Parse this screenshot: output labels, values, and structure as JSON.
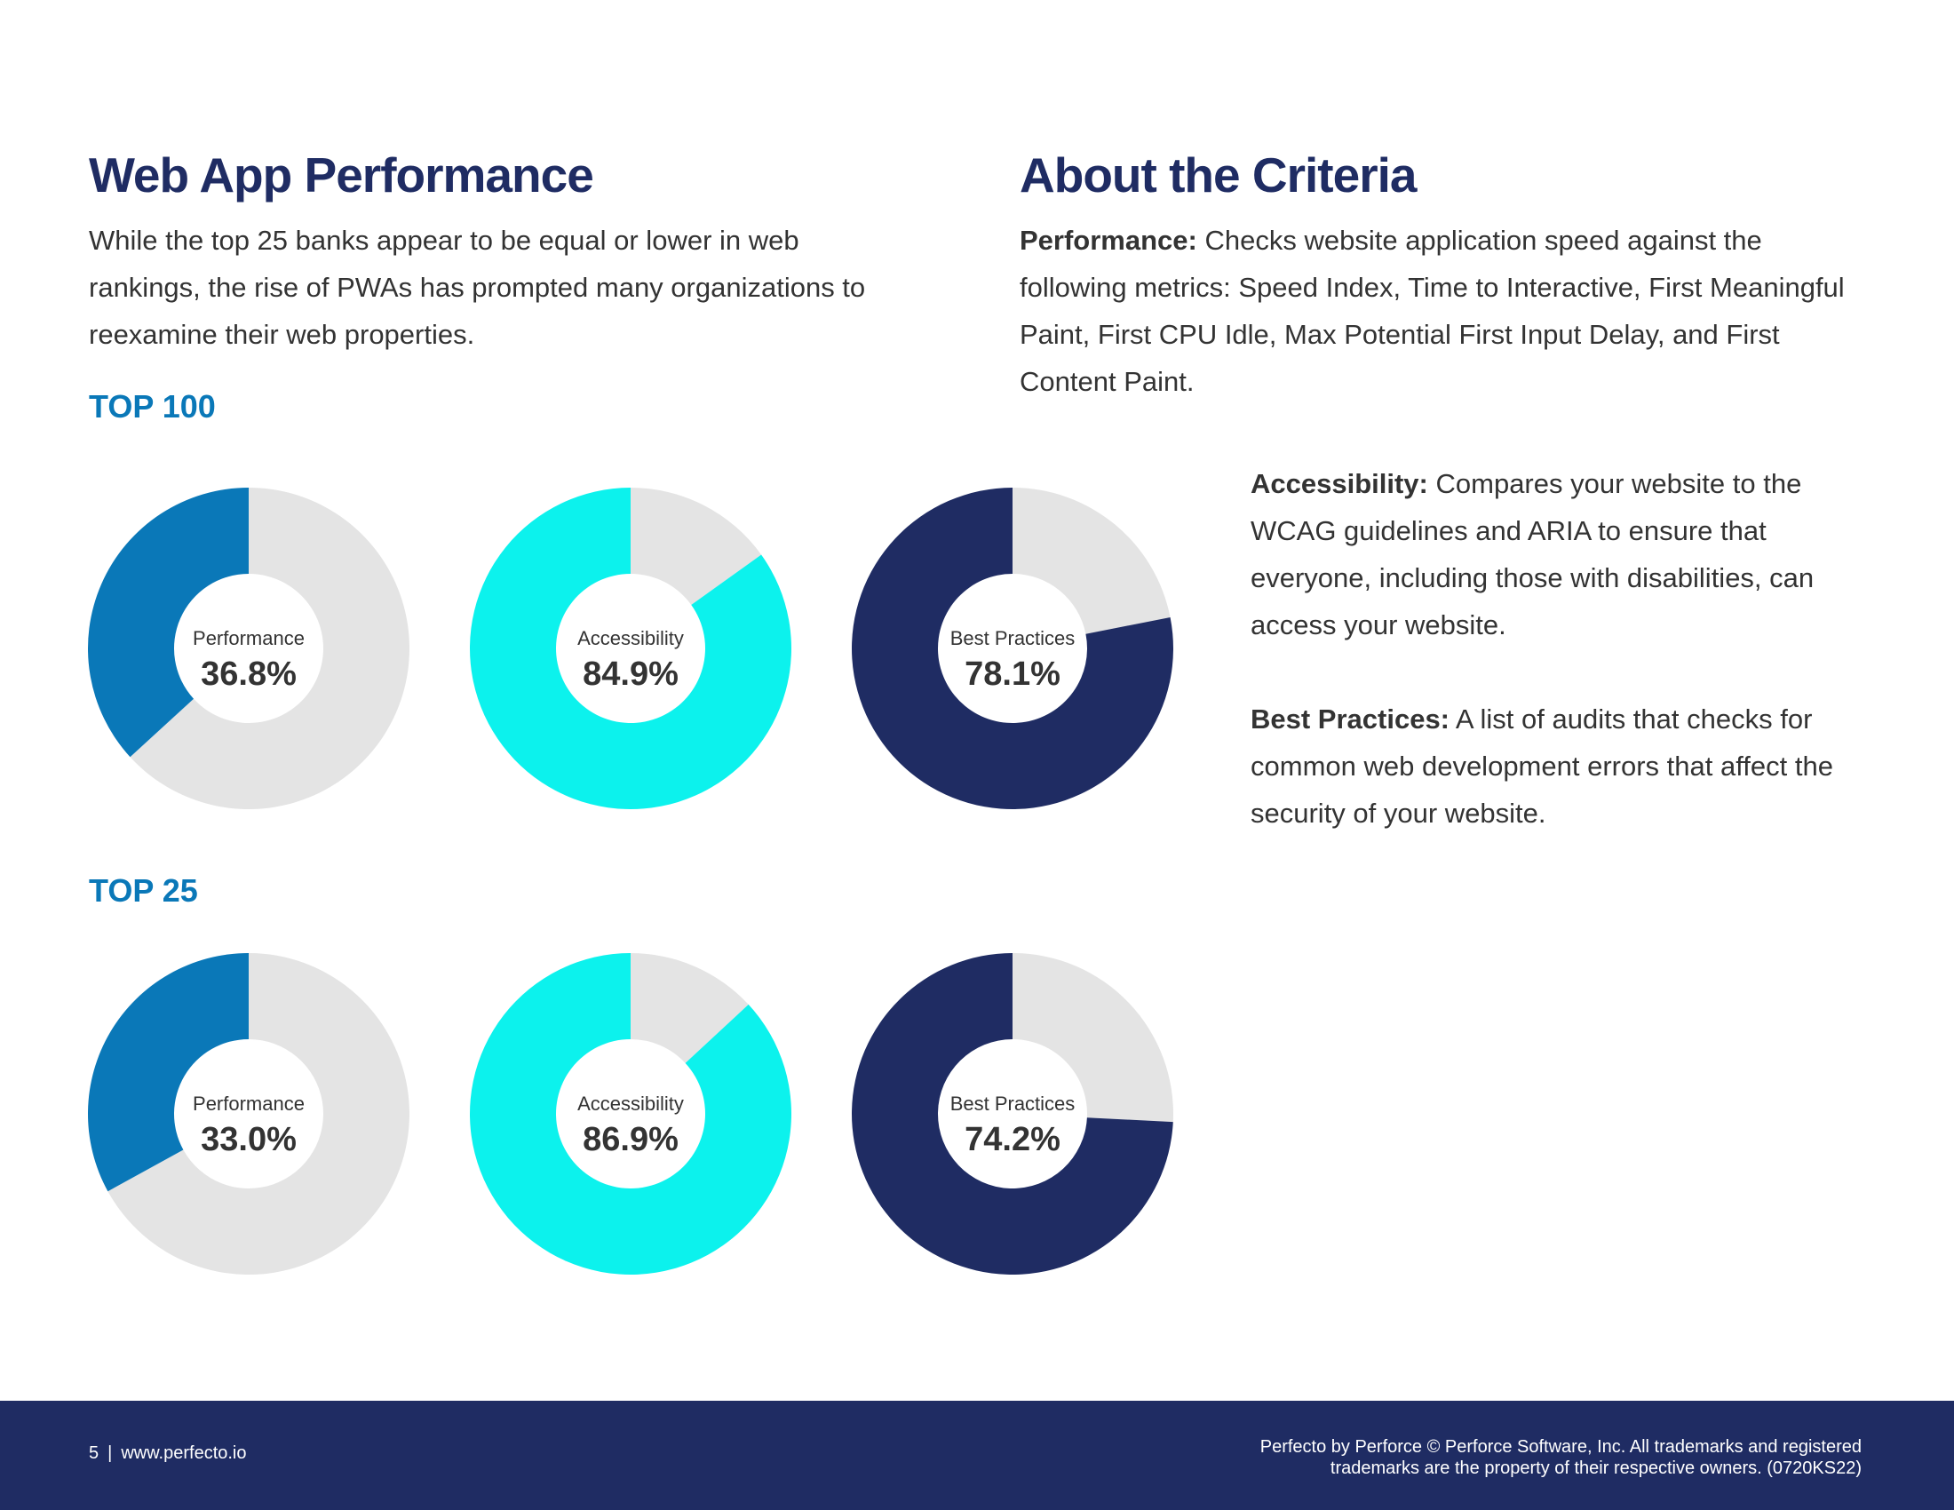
{
  "left": {
    "title": "Web App Performance",
    "intro": "While the top 25 banks appear to be equal or lower in web rankings, the rise of PWAs has prompted many organizations to reexamine their web properties."
  },
  "right": {
    "title": "About the Criteria",
    "performance": {
      "term": "Performance:",
      "text": "Checks website application speed against the following metrics: Speed Index, Time to Interactive, First Meaningful Paint, First CPU Idle, Max Potential First Input Delay, and First Content Paint."
    },
    "accessibility": {
      "term": "Accessibility:",
      "text": "Compares your website to the WCAG guidelines and ARIA to ensure that everyone, including those with disabilities, can access your website."
    },
    "best_practices": {
      "term": "Best Practices:",
      "text": "A list of audits that checks for common web development errors that affect the security of your website."
    }
  },
  "colors": {
    "remainder": "#e4e4e4",
    "performance": "#0a78b8",
    "accessibility": "#0cf2ed",
    "best_practices": "#1f2c63"
  },
  "chart_data": [
    {
      "type": "pie",
      "group": "TOP 100",
      "charts": [
        {
          "label": "Performance",
          "value": 36.8,
          "display": "36.8%",
          "color": "#0a78b8"
        },
        {
          "label": "Accessibility",
          "value": 84.9,
          "display": "84.9%",
          "color": "#0cf2ed"
        },
        {
          "label": "Best Practices",
          "value": 78.1,
          "display": "78.1%",
          "color": "#1f2c63"
        }
      ]
    },
    {
      "type": "pie",
      "group": "TOP 25",
      "charts": [
        {
          "label": "Performance",
          "value": 33.0,
          "display": "33.0%",
          "color": "#0a78b8"
        },
        {
          "label": "Accessibility",
          "value": 86.9,
          "display": "86.9%",
          "color": "#0cf2ed"
        },
        {
          "label": "Best Practices",
          "value": 74.2,
          "display": "74.2%",
          "color": "#1f2c63"
        }
      ]
    }
  ],
  "footer": {
    "page_number": "5",
    "url": "www.perfecto.io",
    "legal_line1": "Perfecto by Perforce © Perforce Software, Inc. All trademarks and registered",
    "legal_line2": "trademarks are the property of their respective owners. (0720KS22)"
  }
}
